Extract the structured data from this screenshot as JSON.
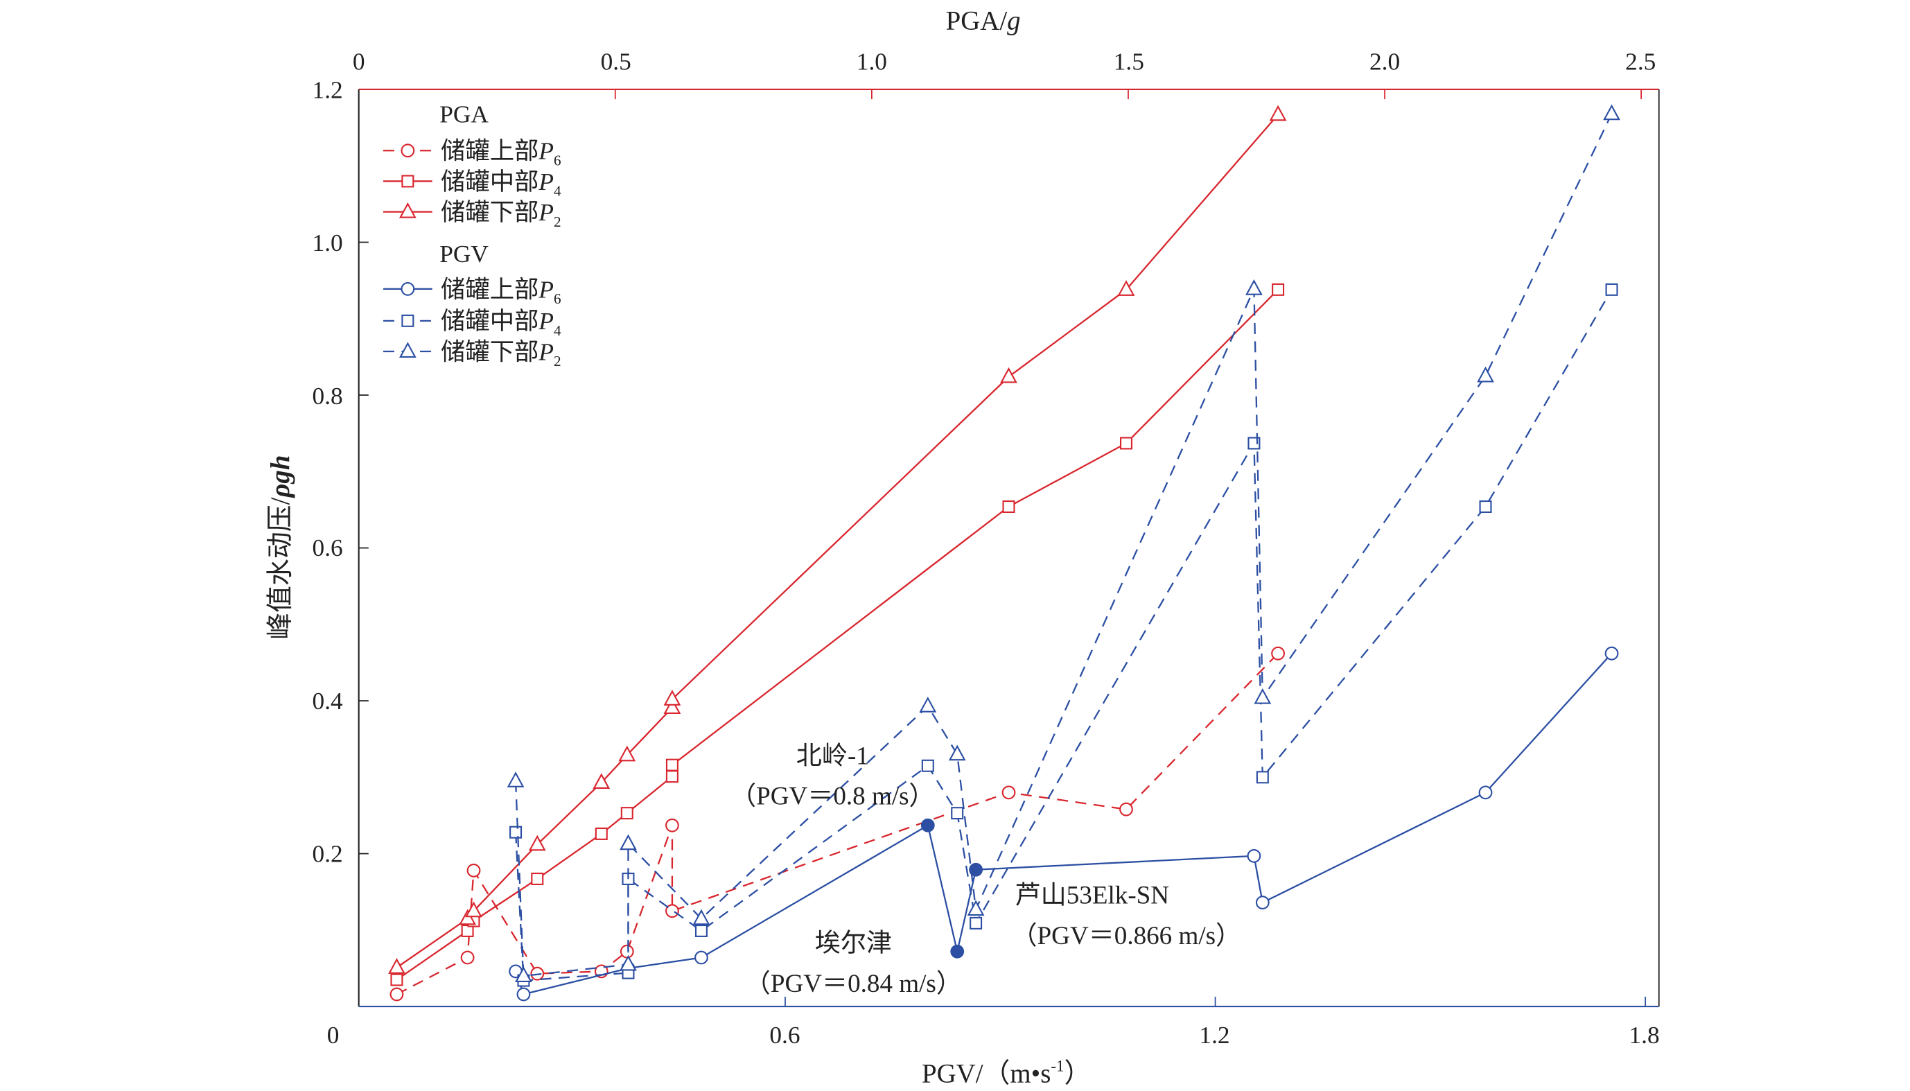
{
  "chart_data": {
    "type": "line",
    "top_axis": {
      "label_main": "PGA/",
      "label_italic": "g",
      "ticks": [
        "0",
        "0.5",
        "1.0",
        "1.5",
        "2.0",
        "2.5"
      ],
      "tick_values": [
        0,
        0.5,
        1.0,
        1.5,
        2.0,
        2.5
      ],
      "range": [
        0,
        2.5
      ]
    },
    "bottom_axis": {
      "label": "PGV/（m•s",
      "label_sup": "-1",
      "label_end": "）",
      "ticks": [
        "0",
        "0.6",
        "1.2",
        "1.8"
      ],
      "tick_values": [
        0,
        0.6,
        1.2,
        1.8
      ],
      "range": [
        0,
        1.8
      ]
    },
    "y_axis": {
      "label_main": "峰值水动压/",
      "label_italic": "ρgh",
      "ticks": [
        "1.2",
        "1.0",
        "0.8",
        "0.6",
        "0.4",
        "0.2"
      ],
      "tick_values": [
        1.2,
        1.0,
        0.8,
        0.6,
        0.4,
        0.2
      ],
      "range": [
        0,
        1.2
      ]
    },
    "legend": {
      "position": "top-left",
      "groups": [
        {
          "title": "PGA",
          "entries": [
            {
              "label": "储罐上部",
              "sym": "P",
              "sub": "6"
            },
            {
              "label": "储罐中部",
              "sym": "P",
              "sub": "4"
            },
            {
              "label": "储罐下部",
              "sym": "P",
              "sub": "2"
            }
          ]
        },
        {
          "title": "PGV",
          "entries": [
            {
              "label": "储罐上部",
              "sym": "P",
              "sub": "6"
            },
            {
              "label": "储罐中部",
              "sym": "P",
              "sub": "4"
            },
            {
              "label": "储罐下部",
              "sym": "P",
              "sub": "2"
            }
          ]
        }
      ]
    },
    "colors": {
      "pga": "#d9262e",
      "pgv": "#2c4fa3"
    },
    "series": [
      {
        "name": "PGA 储罐上部P6",
        "axis": "top",
        "color": "pga",
        "marker": "circle",
        "dash": true,
        "x": [
          0.074,
          0.212,
          0.224,
          0.348,
          0.473,
          0.523,
          0.611,
          0.611,
          1.267,
          1.496,
          1.792
        ],
        "y": [
          0.016,
          0.064,
          0.178,
          0.043,
          0.046,
          0.072,
          0.237,
          0.125,
          0.28,
          0.258,
          0.462
        ]
      },
      {
        "name": "PGA 储罐中部P4",
        "axis": "top",
        "color": "pga",
        "marker": "square",
        "dash": false,
        "x": [
          0.074,
          0.212,
          0.224,
          0.348,
          0.473,
          0.523,
          0.611,
          0.611,
          1.267,
          1.496,
          1.792
        ],
        "y": [
          0.035,
          0.099,
          0.112,
          0.167,
          0.226,
          0.253,
          0.301,
          0.316,
          0.654,
          0.737,
          0.938
        ]
      },
      {
        "name": "PGA 储罐下部P2",
        "axis": "top",
        "color": "pga",
        "marker": "triangle",
        "dash": false,
        "x": [
          0.074,
          0.212,
          0.224,
          0.348,
          0.473,
          0.523,
          0.611,
          0.611,
          1.267,
          1.496,
          1.792
        ],
        "y": [
          0.051,
          0.115,
          0.125,
          0.212,
          0.293,
          0.329,
          0.391,
          0.402,
          0.824,
          0.938,
          1.167
        ]
      },
      {
        "name": "PGV 储罐上部P6",
        "axis": "bottom",
        "color": "pgv",
        "marker": "circle",
        "dash": false,
        "x": [
          0.224,
          0.235,
          0.381,
          0.483,
          0.799,
          0.84,
          0.866,
          1.254,
          1.266,
          1.577,
          1.753
        ],
        "y": [
          0.046,
          0.016,
          0.05,
          0.064,
          0.237,
          0.072,
          0.179,
          0.197,
          0.136,
          0.28,
          0.462
        ],
        "filled": [
          false,
          false,
          false,
          false,
          true,
          true,
          true,
          false,
          false,
          false,
          false
        ]
      },
      {
        "name": "PGV 储罐中部P4",
        "axis": "bottom",
        "color": "pgv",
        "marker": "square",
        "dash": true,
        "x": [
          0.224,
          0.235,
          0.381,
          0.381,
          0.483,
          0.799,
          0.84,
          0.866,
          1.254,
          1.266,
          1.577,
          1.753
        ],
        "y": [
          0.228,
          0.034,
          0.044,
          0.167,
          0.099,
          0.315,
          0.253,
          0.109,
          0.737,
          0.3,
          0.654,
          0.938
        ]
      },
      {
        "name": "PGV 储罐下部P2",
        "axis": "bottom",
        "color": "pgv",
        "marker": "triangle",
        "dash": true,
        "x": [
          0.224,
          0.235,
          0.381,
          0.381,
          0.483,
          0.799,
          0.84,
          0.866,
          1.254,
          1.266,
          1.577,
          1.753
        ],
        "y": [
          0.295,
          0.04,
          0.055,
          0.213,
          0.115,
          0.393,
          0.33,
          0.127,
          0.939,
          0.404,
          0.825,
          1.168
        ]
      }
    ],
    "annotations": [
      {
        "name": "beiling",
        "line1": "北岭-1",
        "line2": "（PGV＝0.8 m/s）"
      },
      {
        "name": "aierjin",
        "line1": "埃尔津",
        "line2": "（PGV＝0.84 m/s）"
      },
      {
        "name": "lushan",
        "line1": "芦山53Elk-SN",
        "line2": "（PGV＝0.866 m/s）"
      }
    ]
  }
}
